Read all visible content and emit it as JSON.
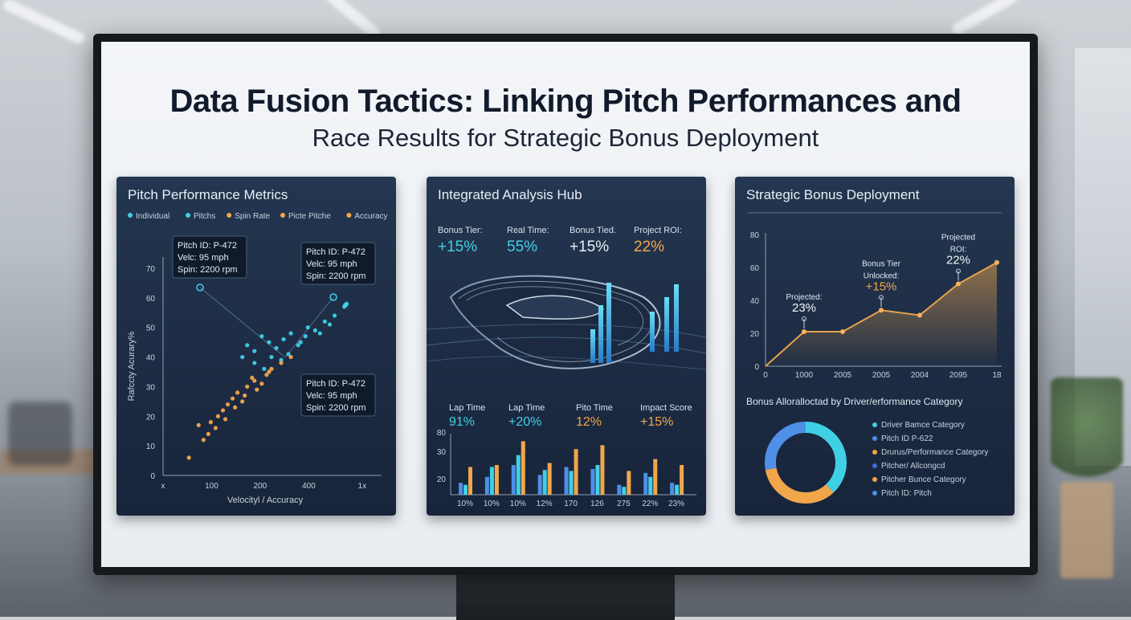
{
  "title": {
    "line1": "Data Fusion Tactics: Linking Pitch Performances and",
    "line2": "Race Results for Strategic Bonus Deployment"
  },
  "colors": {
    "cyan": "#3fd0e6",
    "blue": "#4f8fe6",
    "orange": "#f2a64a",
    "panel_bg": "#1d2d45",
    "line": "#e6a24c"
  },
  "chart_data": [
    {
      "type": "scatter",
      "title": "Pitch Performance Metrics",
      "legend": [
        "Individual",
        "Pitchs",
        "Spin Rate",
        "Picte Pitche",
        "Accuracy"
      ],
      "xlabel": "Velocityl / Accuracy",
      "ylabel": "Rafccty Acurary%",
      "xticks": [
        "x",
        "100",
        "200",
        "400",
        "1x"
      ],
      "yticks": [
        "0",
        "10",
        "20",
        "30",
        "40",
        "50",
        "60",
        "70"
      ],
      "ylim": [
        0,
        70
      ],
      "annotations": [
        {
          "lines": [
            "Pitch ID: P-472",
            "Velc: 95 mph",
            "Spin: 2200 rpm"
          ]
        },
        {
          "lines": [
            "Pitch ID: P-472",
            "Velc: 95 mph",
            "Spin: 2200 rpm"
          ]
        },
        {
          "lines": [
            "Pitch ID: P-472",
            "Velc: 95 mph",
            "Spin: 2200 rpm"
          ]
        }
      ],
      "series": [
        {
          "name": "Individual",
          "color": "#3fd0e6",
          "points": [
            [
              160,
              44
            ],
            [
              175,
              42
            ],
            [
              190,
              47
            ],
            [
              205,
              45
            ],
            [
              220,
              43
            ],
            [
              235,
              46
            ],
            [
              250,
              48
            ],
            [
              265,
              44
            ],
            [
              285,
              50
            ],
            [
              300,
              49
            ],
            [
              320,
              52
            ],
            [
              340,
              54
            ],
            [
              360,
              57
            ],
            [
              175,
              38
            ],
            [
              210,
              40
            ],
            [
              245,
              41
            ],
            [
              280,
              47
            ],
            [
              330,
              51
            ],
            [
              365,
              58
            ],
            [
              150,
              40
            ],
            [
              195,
              36
            ],
            [
              230,
              39
            ],
            [
              270,
              45
            ],
            [
              310,
              48
            ]
          ]
        },
        {
          "name": "Accuracy",
          "color": "#f2a64a",
          "points": [
            [
              40,
              6
            ],
            [
              70,
              12
            ],
            [
              85,
              18
            ],
            [
              95,
              16
            ],
            [
              100,
              20
            ],
            [
              110,
              22
            ],
            [
              120,
              24
            ],
            [
              130,
              26
            ],
            [
              140,
              28
            ],
            [
              150,
              25
            ],
            [
              160,
              30
            ],
            [
              170,
              33
            ],
            [
              180,
              29
            ],
            [
              190,
              31
            ],
            [
              200,
              34
            ],
            [
              210,
              36
            ],
            [
              230,
              38
            ],
            [
              250,
              40
            ],
            [
              60,
              17
            ],
            [
              80,
              14
            ],
            [
              115,
              19
            ],
            [
              135,
              23
            ],
            [
              155,
              27
            ],
            [
              175,
              32
            ],
            [
              205,
              35
            ]
          ]
        }
      ]
    },
    {
      "type": "bar",
      "title": "Integrated Analysis Hub",
      "kpis_top": [
        {
          "label": "Bonus Tier:",
          "value": "+15%"
        },
        {
          "label": "Real Time:",
          "value": "55%"
        },
        {
          "label": "Bonus Tied.",
          "value": "+15%"
        },
        {
          "label": "Project ROI:",
          "value": "22%"
        }
      ],
      "kpis_bottom": [
        {
          "label": "Lap Time",
          "value": "91%"
        },
        {
          "label": "Lap Time",
          "value": "+20%"
        },
        {
          "label": "Pito Time",
          "value": "12%"
        },
        {
          "label": "Impact Score",
          "value": "+15%"
        }
      ],
      "categories": [
        "10%",
        "10%",
        "10%",
        "12%",
        "170",
        "126",
        "275",
        "22%",
        "23%"
      ],
      "yticks": [
        "20",
        "30",
        "80"
      ],
      "series": [
        {
          "name": "",
          "color": "#4f8fe6",
          "values": [
            12,
            18,
            30,
            20,
            28,
            26,
            10,
            22,
            12
          ]
        },
        {
          "name": "",
          "color": "#3fd0e6",
          "values": [
            10,
            28,
            40,
            25,
            24,
            30,
            8,
            18,
            10
          ]
        },
        {
          "name": "",
          "color": "#f2a64a",
          "values": [
            28,
            30,
            54,
            32,
            46,
            50,
            24,
            36,
            30
          ]
        }
      ]
    },
    {
      "type": "line",
      "title": "Strategic Bonus Deployment",
      "xticks": [
        "0",
        "1000",
        "2005",
        "2005",
        "2004",
        "2095",
        "18"
      ],
      "yticks": [
        "0",
        "20",
        "40",
        "60",
        "80"
      ],
      "ylim": [
        0,
        80
      ],
      "values": [
        [
          0,
          0
        ],
        [
          1,
          21
        ],
        [
          2,
          21
        ],
        [
          3,
          34
        ],
        [
          4,
          31
        ],
        [
          5,
          50
        ],
        [
          6,
          63
        ]
      ],
      "annotations": [
        {
          "text_lines": [
            "Projected:",
            "23%"
          ]
        },
        {
          "text_lines": [
            "Bonus Tier",
            "Unlocked:",
            "+15%"
          ]
        },
        {
          "text_lines": [
            "Projected",
            "ROI:",
            "22%"
          ]
        }
      ]
    },
    {
      "type": "pie",
      "title": "Bonus Alloralloctad by Driver/erformance Category",
      "legend": [
        {
          "label": "Driver Bamce Category",
          "color": "#3fd0e6"
        },
        {
          "label": "Pitch ID P-622",
          "color": "#4f8fe6"
        },
        {
          "label": "Drurus/Performance Category",
          "color": "#f2a64a"
        },
        {
          "label": "Pitcher/ Allcongcd",
          "color": "#3a6fc9"
        },
        {
          "label": "Pitcher Bunce Category",
          "color": "#f2a64a"
        },
        {
          "label": "Pitch ID: Pitch",
          "color": "#4f8fe6"
        }
      ],
      "values": [
        {
          "label": "segment-cyan",
          "value": 38,
          "color": "#3fd0e6"
        },
        {
          "label": "segment-orange",
          "value": 34,
          "color": "#f2a64a"
        },
        {
          "label": "segment-blue",
          "value": 28,
          "color": "#4f8fe6"
        }
      ]
    }
  ]
}
